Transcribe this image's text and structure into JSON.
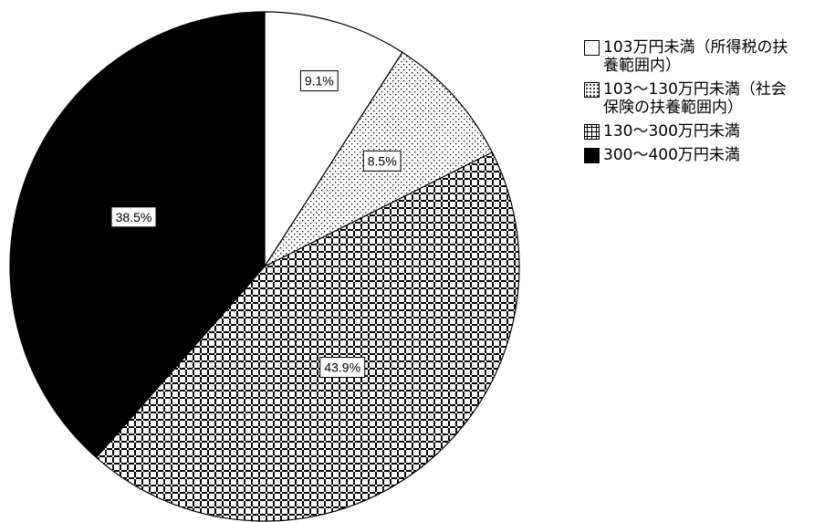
{
  "chart_data": {
    "type": "pie",
    "title": "",
    "categories": [
      "103万円未満（所得税の扶\n養範囲内）",
      "103～130万円未満（社会\n保険の扶養範囲内）",
      "130～300万円未満",
      "300～400万円未満"
    ],
    "values": [
      9.1,
      8.5,
      43.9,
      38.5
    ],
    "labels": [
      "9.1%",
      "8.5%",
      "43.9%",
      "38.5%"
    ],
    "start_angle": "12 o'clock",
    "direction": "clockwise",
    "legend": "right",
    "fills": [
      "white",
      "dots",
      "cross-hatch",
      "black"
    ]
  }
}
